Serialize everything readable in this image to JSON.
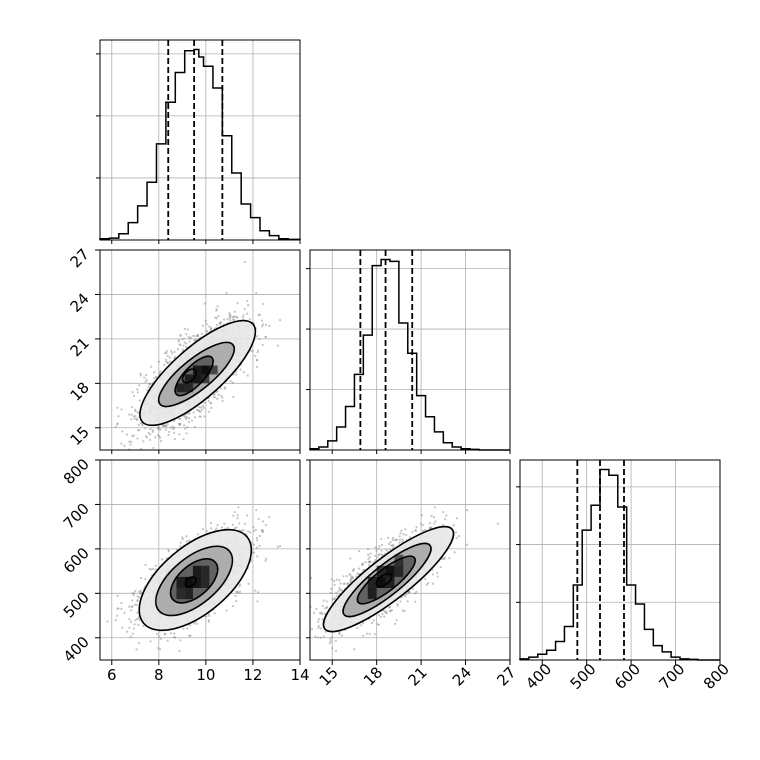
{
  "chart_data": {
    "type": "corner",
    "grid": true,
    "colors": {
      "line": "#000000",
      "grid": "#b0b0b0",
      "points": "#8a8a8a",
      "contour_fill_light": "#e8e8e8",
      "contour_fill_mid": "#a8a8a8",
      "contour_fill_dark": "#5a5a5a",
      "peak": "#000000"
    },
    "parameters": [
      {
        "lim": [
          5.5,
          14.0
        ],
        "ticks": [
          6,
          8,
          10,
          12,
          14
        ],
        "tick_labels": [
          "6",
          "8",
          "10",
          "12",
          "14"
        ],
        "quantiles": [
          8.4,
          9.5,
          10.7
        ],
        "mean": 9.55,
        "sd": 1.1,
        "hist_bin_edges": [
          5.5,
          5.9,
          6.3,
          6.7,
          7.1,
          7.5,
          7.9,
          8.3,
          8.7,
          9.1,
          9.5,
          9.7,
          9.9,
          10.3,
          10.7,
          11.1,
          11.5,
          11.9,
          12.3,
          12.7,
          13.1,
          13.5,
          14.0
        ],
        "hist_counts": [
          2,
          3,
          10,
          28,
          55,
          93,
          155,
          222,
          270,
          305,
          307,
          295,
          280,
          245,
          168,
          108,
          58,
          36,
          15,
          7,
          2,
          1
        ],
        "hist_yticks": [
          100,
          200,
          300
        ]
      },
      {
        "lim": [
          13.5,
          27.0
        ],
        "ticks": [
          15,
          18,
          21,
          24,
          27
        ],
        "tick_labels": [
          "15",
          "18",
          "21",
          "24",
          "27"
        ],
        "quantiles": [
          16.9,
          18.6,
          20.4
        ],
        "mean": 18.6,
        "sd": 1.75,
        "hist_bin_edges": [
          13.5,
          14.1,
          14.7,
          15.3,
          15.9,
          16.5,
          17.1,
          17.7,
          18.3,
          18.9,
          19.5,
          20.1,
          20.7,
          21.3,
          21.9,
          22.5,
          23.1,
          23.7,
          24.3,
          24.9,
          25.5,
          26.1,
          26.7,
          27.0
        ],
        "hist_counts": [
          2,
          5,
          15,
          38,
          72,
          125,
          190,
          305,
          315,
          312,
          210,
          160,
          90,
          55,
          30,
          12,
          5,
          2,
          1,
          0,
          0,
          0,
          0
        ],
        "hist_yticks": [
          100,
          200,
          300
        ]
      },
      {
        "lim": [
          350,
          800
        ],
        "ticks": [
          400,
          500,
          600,
          700,
          800
        ],
        "tick_labels": [
          "400",
          "500",
          "600",
          "700",
          "800"
        ],
        "quantiles": [
          479,
          530,
          584
        ],
        "mean": 530,
        "sd": 50,
        "hist_bin_edges": [
          350,
          370,
          390,
          410,
          430,
          450,
          470,
          490,
          510,
          530,
          550,
          570,
          590,
          610,
          630,
          650,
          670,
          690,
          710,
          730,
          750,
          770,
          800
        ],
        "hist_counts": [
          2,
          5,
          10,
          17,
          32,
          58,
          130,
          225,
          268,
          330,
          320,
          265,
          130,
          97,
          53,
          25,
          14,
          5,
          2,
          1,
          0,
          0
        ],
        "hist_yticks": [
          100,
          200,
          300
        ]
      }
    ],
    "pairs": [
      {
        "row": 1,
        "col": 0,
        "density_peak": [
          9.5,
          18.8
        ],
        "contours": [
          {
            "level": 0.5,
            "center": [
              9.65,
              18.7
            ],
            "half_major": [
              2.35,
              3.3
            ],
            "half_minor_frac": 0.34
          },
          {
            "level": 1.0,
            "center": [
              9.6,
              18.6
            ],
            "half_major": [
              1.55,
              2.0
            ],
            "half_minor_frac": 0.33
          },
          {
            "level": 1.5,
            "center": [
              9.5,
              18.5
            ],
            "half_major": [
              0.75,
              1.25
            ],
            "half_minor_frac": 0.38
          },
          {
            "level": 2.0,
            "center": [
              9.3,
              18.5
            ],
            "half_major": [
              0.25,
              0.4
            ],
            "half_minor_frac": 0.6
          }
        ],
        "cells": [
          {
            "x": [
              9.8,
              10.15
            ],
            "y": [
              18.6,
              19.2
            ],
            "shade": 1.0
          },
          {
            "x": [
              9.45,
              9.8
            ],
            "y": [
              18.6,
              19.2
            ],
            "shade": 0.85
          },
          {
            "x": [
              9.1,
              9.45
            ],
            "y": [
              18.0,
              18.6
            ],
            "shade": 0.8
          },
          {
            "x": [
              8.75,
              9.1
            ],
            "y": [
              17.4,
              18.0
            ],
            "shade": 0.75
          },
          {
            "x": [
              9.1,
              9.45
            ],
            "y": [
              17.4,
              18.0
            ],
            "shade": 0.7
          },
          {
            "x": [
              9.45,
              9.8
            ],
            "y": [
              18.0,
              18.6
            ],
            "shade": 0.9
          },
          {
            "x": [
              9.8,
              10.15
            ],
            "y": [
              18.0,
              18.6
            ],
            "shade": 0.75
          },
          {
            "x": [
              10.15,
              10.5
            ],
            "y": [
              18.6,
              19.2
            ],
            "shade": 0.7
          }
        ]
      },
      {
        "row": 2,
        "col": 0,
        "density_peak": [
          9.5,
          530
        ],
        "contours": [
          {
            "level": 0.5,
            "center": [
              9.55,
              530
            ],
            "half_major": [
              2.2,
              97
            ],
            "half_minor_frac": 0.5
          },
          {
            "level": 1.0,
            "center": [
              9.5,
              528
            ],
            "half_major": [
              1.5,
              67
            ],
            "half_minor_frac": 0.5
          },
          {
            "level": 1.5,
            "center": [
              9.5,
              528
            ],
            "half_major": [
              0.9,
              42
            ],
            "half_minor_frac": 0.55
          },
          {
            "level": 2.0,
            "center": [
              9.35,
              526
            ],
            "half_major": [
              0.2,
              8
            ],
            "half_minor_frac": 0.7
          }
        ],
        "cells": [
          {
            "x": [
              9.1,
              9.45
            ],
            "y": [
              512,
              537
            ],
            "shade": 1.0
          },
          {
            "x": [
              9.45,
              9.8
            ],
            "y": [
              537,
              562
            ],
            "shade": 0.85
          },
          {
            "x": [
              8.75,
              9.1
            ],
            "y": [
              512,
              537
            ],
            "shade": 0.8
          },
          {
            "x": [
              9.45,
              9.8
            ],
            "y": [
              512,
              537
            ],
            "shade": 0.9
          },
          {
            "x": [
              9.1,
              9.45
            ],
            "y": [
              487,
              512
            ],
            "shade": 0.75
          },
          {
            "x": [
              9.8,
              10.15
            ],
            "y": [
              537,
              562
            ],
            "shade": 0.7
          },
          {
            "x": [
              8.75,
              9.1
            ],
            "y": [
              487,
              512
            ],
            "shade": 0.65
          },
          {
            "x": [
              9.8,
              10.15
            ],
            "y": [
              512,
              537
            ],
            "shade": 0.7
          }
        ]
      },
      {
        "row": 2,
        "col": 1,
        "density_peak": [
          18.6,
          530
        ],
        "contours": [
          {
            "level": 0.5,
            "center": [
              18.8,
              532
            ],
            "half_major": [
              4.3,
              112
            ],
            "half_minor_frac": 0.26
          },
          {
            "level": 1.0,
            "center": [
              18.7,
              530
            ],
            "half_major": [
              2.9,
              78
            ],
            "half_minor_frac": 0.27
          },
          {
            "level": 1.5,
            "center": [
              18.65,
              530
            ],
            "half_major": [
              1.9,
              50
            ],
            "half_minor_frac": 0.3
          },
          {
            "level": 2.0,
            "center": [
              18.5,
              530
            ],
            "half_major": [
              0.5,
              12
            ],
            "half_minor_frac": 0.5
          }
        ],
        "cells": [
          {
            "x": [
              18.0,
              18.6
            ],
            "y": [
              512,
              537
            ],
            "shade": 1.0
          },
          {
            "x": [
              18.6,
              19.2
            ],
            "y": [
              537,
              562
            ],
            "shade": 0.95
          },
          {
            "x": [
              17.4,
              18.0
            ],
            "y": [
              487,
              512
            ],
            "shade": 0.8
          },
          {
            "x": [
              18.6,
              19.2
            ],
            "y": [
              512,
              537
            ],
            "shade": 0.8
          },
          {
            "x": [
              18.0,
              18.6
            ],
            "y": [
              537,
              562
            ],
            "shade": 0.75
          },
          {
            "x": [
              17.4,
              18.0
            ],
            "y": [
              512,
              537
            ],
            "shade": 0.75
          },
          {
            "x": [
              19.2,
              19.8
            ],
            "y": [
              537,
              562
            ],
            "shade": 0.7
          },
          {
            "x": [
              19.2,
              19.8
            ],
            "y": [
              562,
              587
            ],
            "shade": 0.6
          }
        ]
      }
    ],
    "scatter_samples": 2200
  }
}
